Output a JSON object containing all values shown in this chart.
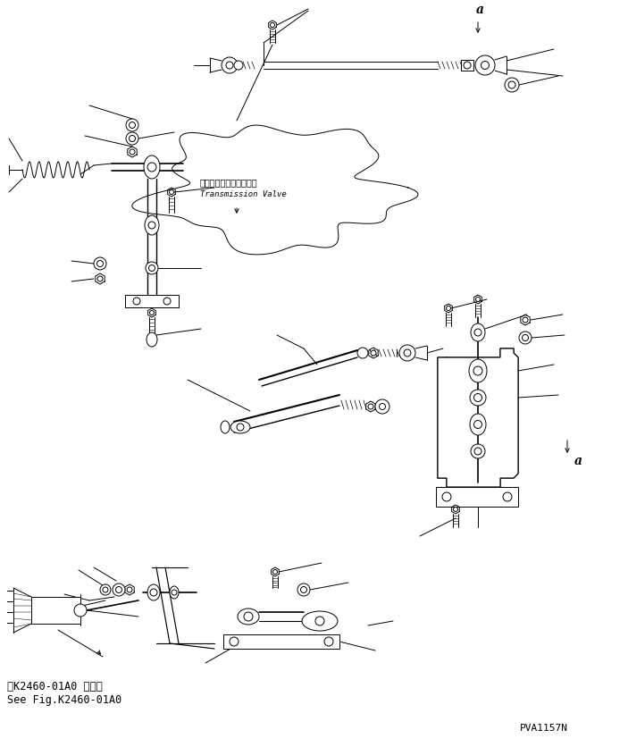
{
  "bg_color": "#ffffff",
  "line_color": "#000000",
  "text_color": "#000000",
  "fig_width": 7.03,
  "fig_height": 8.36,
  "dpi": 100,
  "bottom_left_text1": "第K2460-01A0 図参照",
  "bottom_left_text2": "See Fig.K2460-01A0",
  "bottom_right_text": "PVA1157N",
  "label_a_top": "a",
  "label_a_bottom": "a",
  "transmission_valve_jp": "トランスミションバルブ",
  "transmission_valve_en": "Transmission Valve"
}
